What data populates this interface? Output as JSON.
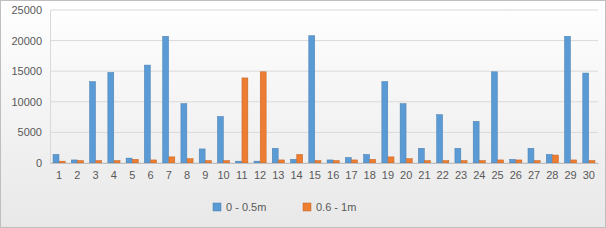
{
  "chart_data": {
    "type": "bar",
    "categories": [
      "1",
      "2",
      "3",
      "4",
      "5",
      "6",
      "7",
      "8",
      "9",
      "10",
      "11",
      "12",
      "13",
      "14",
      "15",
      "16",
      "17",
      "18",
      "19",
      "20",
      "21",
      "22",
      "23",
      "24",
      "25",
      "26",
      "27",
      "28",
      "29",
      "30"
    ],
    "series": [
      {
        "name": "0 - 0.5m",
        "color": "#5b9bd5",
        "values": [
          1400,
          500,
          13300,
          14800,
          800,
          16000,
          20700,
          9700,
          2300,
          7600,
          300,
          300,
          2400,
          600,
          20800,
          500,
          900,
          1400,
          13300,
          9700,
          2400,
          7900,
          2400,
          6800,
          14900,
          600,
          2400,
          1400,
          20700,
          14700
        ]
      },
      {
        "name": "0.6 - 1m",
        "color": "#ed7d31",
        "values": [
          300,
          400,
          400,
          400,
          600,
          500,
          1000,
          700,
          400,
          400,
          13900,
          14900,
          500,
          1400,
          400,
          400,
          500,
          600,
          1000,
          700,
          400,
          400,
          400,
          400,
          500,
          500,
          400,
          1300,
          500,
          400
        ]
      }
    ],
    "ylim": [
      0,
      25000
    ],
    "yticks": [
      0,
      5000,
      10000,
      15000,
      20000,
      25000
    ],
    "grid": true,
    "legend": "bottom"
  }
}
